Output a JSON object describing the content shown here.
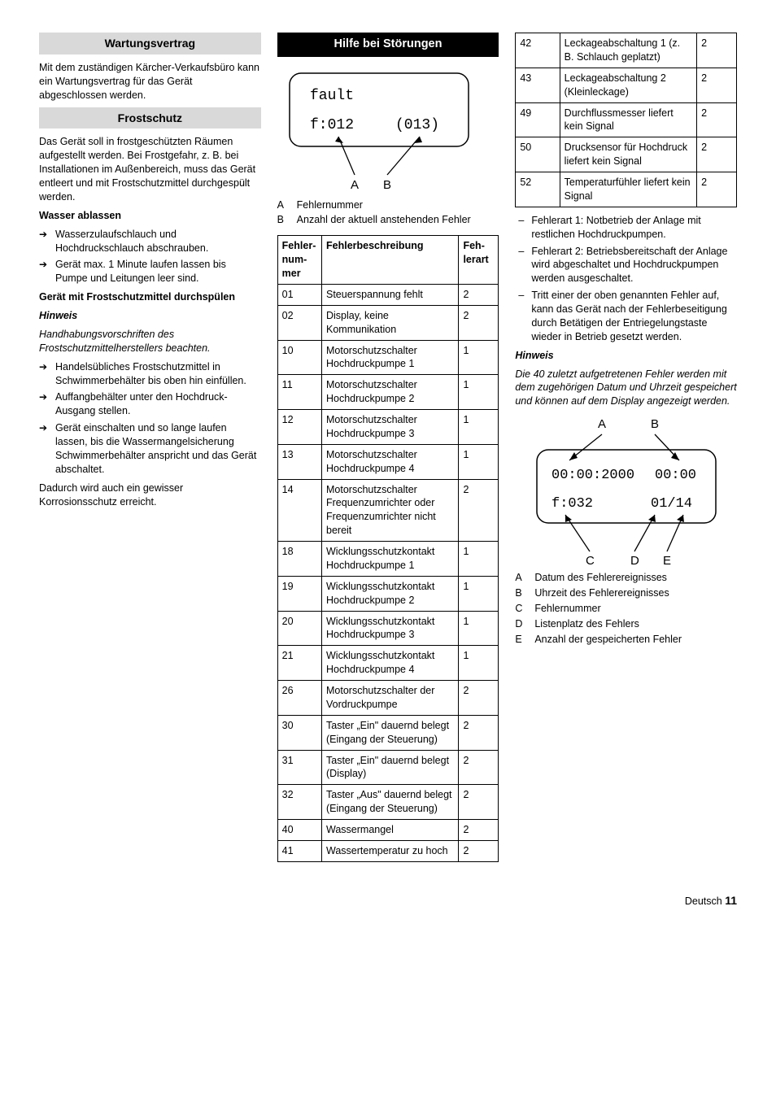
{
  "col1": {
    "h_wart": "Wartungsvertrag",
    "wart_p": "Mit dem zuständigen Kärcher-Verkaufsbüro kann ein Wartungsvertrag für das Gerät abgeschlossen werden.",
    "h_frost": "Frostschutz",
    "frost_p": "Das Gerät soll in frostgeschützten Räumen aufgestellt werden. Bei Frostgefahr, z. B. bei Installationen im Außenbereich, muss das Gerät entleert und mit Frostschutzmittel durchgespült werden.",
    "h_wasser": "Wasser ablassen",
    "wasser_items": [
      "Wasserzulaufschlauch und Hochdruckschlauch abschrauben.",
      "Gerät max. 1 Minute laufen lassen bis Pumpe und Leitungen leer sind."
    ],
    "h_geraet": "Gerät mit Frostschutzmittel durchspülen",
    "hinweis": "Hinweis",
    "hinweis_p": "Handhabungsvorschriften des Frostschutzmittelherstellers beachten.",
    "geraet_items": [
      "Handelsübliches Frostschutzmittel in Schwimmerbehälter bis oben hin einfüllen.",
      "Auffangbehälter unter den Hochdruck-Ausgang stellen.",
      "Gerät einschalten und so lange laufen lassen, bis die Wassermangelsicherung Schwimmerbehälter anspricht und das Gerät abschaltet."
    ],
    "tail": "Dadurch wird auch ein gewisser Korrosionsschutz erreicht."
  },
  "col2": {
    "h_hilfe": "Hilfe bei Störungen",
    "disp1_l1": "fault",
    "disp1_l2a": "f:012",
    "disp1_l2b": "(013)",
    "leg1": [
      {
        "k": "A",
        "v": "Fehlernummer"
      },
      {
        "k": "B",
        "v": "Anzahl der aktuell anstehenden Fehler"
      }
    ],
    "th_num": "Fehler­num­mer",
    "th_desc": "Fehlerbeschrei­bung",
    "th_art": "Feh­lerart",
    "rows": [
      {
        "n": "01",
        "d": "Steuerspannung fehlt",
        "a": "2"
      },
      {
        "n": "02",
        "d": "Display, keine Kommunikation",
        "a": "2"
      },
      {
        "n": "10",
        "d": "Motorschutzschalter Hochdruckpumpe 1",
        "a": "1"
      },
      {
        "n": "11",
        "d": "Motorschutzschalter Hochdruckpumpe 2",
        "a": "1"
      },
      {
        "n": "12",
        "d": "Motorschutzschalter Hochdruckpumpe 3",
        "a": "1"
      },
      {
        "n": "13",
        "d": "Motorschutzschalter Hochdruckpumpe 4",
        "a": "1"
      },
      {
        "n": "14",
        "d": "Motorschutzschalter Frequenzumrichter oder Frequenzumrichter nicht bereit",
        "a": "2"
      },
      {
        "n": "18",
        "d": "Wicklungsschutzkontakt Hochdruckpumpe 1",
        "a": "1"
      },
      {
        "n": "19",
        "d": "Wicklungsschutzkontakt Hochdruckpumpe 2",
        "a": "1"
      },
      {
        "n": "20",
        "d": "Wicklungsschutzkontakt Hochdruckpumpe 3",
        "a": "1"
      },
      {
        "n": "21",
        "d": "Wicklungsschutzkontakt Hochdruckpumpe 4",
        "a": "1"
      },
      {
        "n": "26",
        "d": "Motorschutzschalter der Vordruckpumpe",
        "a": "2"
      },
      {
        "n": "30",
        "d": "Taster „Ein\" dauernd belegt (Eingang der Steuerung)",
        "a": "2"
      },
      {
        "n": "31",
        "d": "Taster „Ein\" dauernd belegt (Display)",
        "a": "2"
      },
      {
        "n": "32",
        "d": "Taster „Aus\" dauernd belegt (Eingang der Steuerung)",
        "a": "2"
      },
      {
        "n": "40",
        "d": "Wassermangel",
        "a": "2"
      },
      {
        "n": "41",
        "d": "Wassertemperatur zu hoch",
        "a": "2"
      }
    ]
  },
  "col3": {
    "rows": [
      {
        "n": "42",
        "d": "Leckageabschaltung 1 (z. B. Schlauch geplatzt)",
        "a": "2"
      },
      {
        "n": "43",
        "d": "Leckageabschaltung 2 (Kleinleckage)",
        "a": "2"
      },
      {
        "n": "49",
        "d": "Durchflussmesser liefert kein Signal",
        "a": "2"
      },
      {
        "n": "50",
        "d": "Drucksensor für Hochdruck liefert kein Signal",
        "a": "2"
      },
      {
        "n": "52",
        "d": "Temperaturfühler liefert kein Signal",
        "a": "2"
      }
    ],
    "dashes": [
      "Fehlerart 1: Notbetrieb der Anlage mit restlichen Hochdruckpumpen.",
      "Fehlerart 2: Betriebsbereitschaft der Anlage wird abgeschaltet und Hochdruckpumpen werden ausgeschaltet.",
      "Tritt einer der oben genannten Fehler auf, kann das Gerät nach der Fehlerbeseitigung durch Betätigen der Entriegelungstaste wieder in Betrieb gesetzt werden."
    ],
    "hinweis": "Hinweis",
    "hinweis_p": "Die 40 zuletzt aufgetretenen Fehler werden mit dem zugehörigen Datum und Uhrzeit gespeichert und können auf dem Display angezeigt werden.",
    "disp2_l1a": "00:00:2000",
    "disp2_l1b": "00:00",
    "disp2_l2a": "f:032",
    "disp2_l2b": "01/14",
    "labels": {
      "A": "A",
      "B": "B",
      "C": "C",
      "D": "D",
      "E": "E"
    },
    "leg2": [
      {
        "k": "A",
        "v": "Datum des Fehlerereignisses"
      },
      {
        "k": "B",
        "v": "Uhrzeit des Fehlerereignisses"
      },
      {
        "k": "C",
        "v": "Fehlernummer"
      },
      {
        "k": "D",
        "v": "Listenplatz des Fehlers"
      },
      {
        "k": "E",
        "v": "Anzahl der gespeicherten Fehler"
      }
    ]
  },
  "footer": {
    "lang": "Deutsch",
    "pg": "11"
  }
}
